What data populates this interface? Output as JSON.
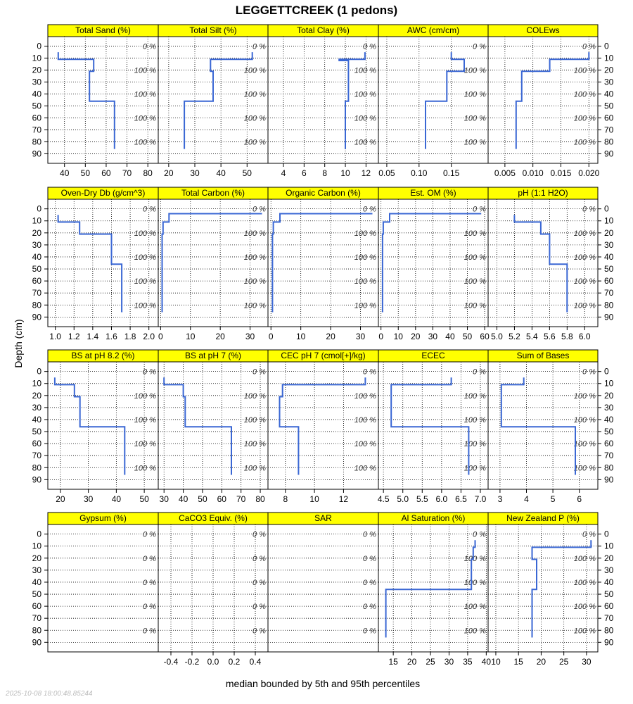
{
  "title": "LEGGETTCREEK (1 pedons)",
  "xlabel": "median bounded by 5th and 95th percentiles",
  "ylabel": "Depth (cm)",
  "timestamp": "2025-10-08 18:00:48.85244",
  "colors": {
    "strip": "#ffff00",
    "line": "#3a67d4",
    "grid": "#000000"
  },
  "chart_data": {
    "type": "line",
    "depth_axis": {
      "ticks": [
        0,
        10,
        20,
        30,
        40,
        50,
        60,
        70,
        80,
        90
      ],
      "range": [
        -8,
        98
      ]
    },
    "percent_labels": [
      {
        "depth": 0,
        "text": "0 %"
      },
      {
        "depth": 20,
        "text": "100 %"
      },
      {
        "depth": 40,
        "text": "100 %"
      },
      {
        "depth": 60,
        "text": "100 %"
      },
      {
        "depth": 80,
        "text": "100 %"
      }
    ],
    "percent_labels_zero": [
      {
        "depth": 0,
        "text": "0 %"
      },
      {
        "depth": 20,
        "text": "0 %"
      },
      {
        "depth": 40,
        "text": "0 %"
      },
      {
        "depth": 60,
        "text": "0 %"
      },
      {
        "depth": 80,
        "text": "0 %"
      }
    ],
    "panels": [
      {
        "title": "Total Sand (%)",
        "xlim": [
          32,
          85
        ],
        "xticks": [
          40,
          50,
          60,
          70,
          80
        ],
        "xlabels": [
          "40",
          "50",
          "60",
          "70",
          "80"
        ],
        "axis": "bottom",
        "pct": "full",
        "profile": [
          [
            37,
            5
          ],
          [
            37,
            11
          ],
          [
            54,
            11
          ],
          [
            54,
            21
          ],
          [
            52,
            21
          ],
          [
            52,
            46
          ],
          [
            64,
            46
          ],
          [
            64,
            86
          ]
        ]
      },
      {
        "title": "Total Silt (%)",
        "xlim": [
          16,
          58
        ],
        "xticks": [
          20,
          30,
          40,
          50
        ],
        "xlabels": [
          "20",
          "30",
          "40",
          "50"
        ],
        "axis": "bottom",
        "pct": "full",
        "profile": [
          [
            52,
            5
          ],
          [
            52,
            11
          ],
          [
            36,
            11
          ],
          [
            36,
            21
          ],
          [
            37,
            21
          ],
          [
            37,
            46
          ],
          [
            26,
            46
          ],
          [
            26,
            86
          ]
        ]
      },
      {
        "title": "Total Clay (%)",
        "xlim": [
          2.5,
          13.2
        ],
        "xticks": [
          4,
          6,
          8,
          10,
          12
        ],
        "xlabels": [
          "4",
          "6",
          "8",
          "10",
          "12"
        ],
        "axis": "bottom",
        "pct": "full",
        "profile": [
          [
            11.9,
            5
          ],
          [
            11.9,
            11
          ],
          [
            9.4,
            11
          ],
          [
            9.4,
            12
          ],
          [
            10.3,
            12
          ],
          [
            10.3,
            46
          ],
          [
            10,
            46
          ],
          [
            10,
            86
          ]
        ]
      },
      {
        "title": "AWC (cm/cm)",
        "xlim": [
          0.037,
          0.207
        ],
        "xticks": [
          0.05,
          0.1,
          0.15
        ],
        "xlabels": [
          "0.05",
          "0.10",
          "0.15"
        ],
        "axis": "bottom",
        "pct": "full",
        "profile": [
          [
            0.15,
            5
          ],
          [
            0.15,
            11
          ],
          [
            0.17,
            11
          ],
          [
            0.17,
            21
          ],
          [
            0.143,
            21
          ],
          [
            0.143,
            46
          ],
          [
            0.11,
            46
          ],
          [
            0.11,
            86
          ]
        ]
      },
      {
        "title": "COLEws",
        "xlim": [
          0.002,
          0.0216
        ],
        "xticks": [
          0.005,
          0.01,
          0.015,
          0.02
        ],
        "xlabels": [
          "0.005",
          "0.010",
          "0.015",
          "0.020"
        ],
        "axis": "bottom",
        "pct": "full",
        "profile": [
          [
            0.02,
            5
          ],
          [
            0.02,
            11
          ],
          [
            0.013,
            11
          ],
          [
            0.013,
            21
          ],
          [
            0.008,
            21
          ],
          [
            0.008,
            46
          ],
          [
            0.007,
            46
          ],
          [
            0.007,
            86
          ]
        ]
      },
      {
        "title": "Oven-Dry Db (g/cm^3)",
        "xlim": [
          0.92,
          2.1
        ],
        "xticks": [
          1.0,
          1.2,
          1.4,
          1.6,
          1.8,
          2.0
        ],
        "xlabels": [
          "1.0",
          "1.2",
          "1.4",
          "1.6",
          "1.8",
          "2.0"
        ],
        "axis": "bottom",
        "pct": "full",
        "profile": [
          [
            1.03,
            5
          ],
          [
            1.03,
            11
          ],
          [
            1.26,
            11
          ],
          [
            1.26,
            21
          ],
          [
            1.6,
            21
          ],
          [
            1.6,
            46
          ],
          [
            1.71,
            46
          ],
          [
            1.71,
            86
          ]
        ]
      },
      {
        "title": "Total Carbon (%)",
        "xlim": [
          -0.8,
          36
        ],
        "xticks": [
          0,
          10,
          20,
          30
        ],
        "xlabels": [
          "0",
          "10",
          "20",
          "30"
        ],
        "axis": "bottom",
        "pct": "full",
        "profile": [
          [
            34,
            4
          ],
          [
            2.8,
            4
          ],
          [
            2.8,
            11
          ],
          [
            0.8,
            11
          ],
          [
            0.8,
            21
          ],
          [
            0.5,
            21
          ],
          [
            0.5,
            86
          ]
        ]
      },
      {
        "title": "Organic Carbon (%)",
        "xlim": [
          -1,
          36
        ],
        "xticks": [
          0,
          10,
          20,
          30
        ],
        "xlabels": [
          "0",
          "10",
          "20",
          "30"
        ],
        "axis": "bottom",
        "pct": "full",
        "profile": [
          [
            34,
            4
          ],
          [
            3,
            4
          ],
          [
            3,
            11
          ],
          [
            0.8,
            11
          ],
          [
            0.8,
            21
          ],
          [
            0.5,
            21
          ],
          [
            0.5,
            86
          ]
        ]
      },
      {
        "title": "Est. OM (%)",
        "xlim": [
          -1.5,
          62
        ],
        "xticks": [
          0,
          10,
          20,
          30,
          40,
          50,
          60
        ],
        "xlabels": [
          "0",
          "10",
          "20",
          "30",
          "40",
          "50",
          "60"
        ],
        "axis": "bottom",
        "pct": "full",
        "profile": [
          [
            58,
            4
          ],
          [
            5,
            4
          ],
          [
            5,
            11
          ],
          [
            1.3,
            11
          ],
          [
            1.3,
            21
          ],
          [
            0.9,
            21
          ],
          [
            0.9,
            86
          ]
        ]
      },
      {
        "title": "pH (1:1 H2O)",
        "xlim": [
          4.9,
          6.15
        ],
        "xticks": [
          5.0,
          5.2,
          5.4,
          5.6,
          5.8,
          6.0
        ],
        "xlabels": [
          "5.0",
          "5.2",
          "5.4",
          "5.6",
          "5.8",
          "6.0"
        ],
        "axis": "bottom",
        "pct": "full",
        "profile": [
          [
            5.2,
            5
          ],
          [
            5.2,
            11
          ],
          [
            5.5,
            11
          ],
          [
            5.5,
            21
          ],
          [
            5.6,
            21
          ],
          [
            5.6,
            46
          ],
          [
            5.8,
            46
          ],
          [
            5.8,
            86
          ]
        ]
      },
      {
        "title": "BS at pH 8.2 (%)",
        "xlim": [
          15.5,
          55
        ],
        "xticks": [
          20,
          30,
          40,
          50
        ],
        "xlabels": [
          "20",
          "30",
          "40",
          "50"
        ],
        "axis": "bottom",
        "pct": "full",
        "profile": [
          [
            18,
            5
          ],
          [
            18,
            11
          ],
          [
            25,
            11
          ],
          [
            25,
            21
          ],
          [
            27,
            21
          ],
          [
            27,
            46
          ],
          [
            43,
            46
          ],
          [
            43,
            86
          ]
        ]
      },
      {
        "title": "BS at pH 7 (%)",
        "xlim": [
          27,
          84
        ],
        "xticks": [
          30,
          40,
          50,
          60,
          70,
          80
        ],
        "xlabels": [
          "30",
          "40",
          "50",
          "60",
          "70",
          "80"
        ],
        "axis": "bottom",
        "pct": "full",
        "profile": [
          [
            30,
            5
          ],
          [
            30,
            11
          ],
          [
            40,
            11
          ],
          [
            40,
            21
          ],
          [
            41,
            21
          ],
          [
            41,
            46
          ],
          [
            65,
            46
          ],
          [
            65,
            86
          ]
        ]
      },
      {
        "title": "CEC pH 7 (cmol[+]/kg)",
        "xlim": [
          6.8,
          14.4
        ],
        "xticks": [
          8,
          10,
          12
        ],
        "xlabels": [
          "8",
          "10",
          "12"
        ],
        "axis": "bottom",
        "pct": "full",
        "profile": [
          [
            13.5,
            5
          ],
          [
            13.5,
            11
          ],
          [
            7.8,
            11
          ],
          [
            7.8,
            21
          ],
          [
            7.6,
            21
          ],
          [
            7.6,
            46
          ],
          [
            8.9,
            46
          ],
          [
            8.9,
            86
          ]
        ]
      },
      {
        "title": "ECEC",
        "xlim": [
          4.37,
          7.2
        ],
        "xticks": [
          4.5,
          5.0,
          5.5,
          6.0,
          6.5,
          7.0
        ],
        "xlabels": [
          "4.5",
          "5.0",
          "5.5",
          "6.0",
          "6.5",
          "7.0"
        ],
        "axis": "bottom",
        "pct": "full",
        "profile": [
          [
            6.25,
            5
          ],
          [
            6.25,
            11
          ],
          [
            4.7,
            11
          ],
          [
            4.7,
            46
          ],
          [
            6.7,
            46
          ],
          [
            6.7,
            86
          ]
        ]
      },
      {
        "title": "Sum of Bases",
        "xlim": [
          2.55,
          6.7
        ],
        "xticks": [
          3,
          4,
          5,
          6
        ],
        "xlabels": [
          "3",
          "4",
          "5",
          "6"
        ],
        "axis": "bottom",
        "pct": "full",
        "profile": [
          [
            3.9,
            5
          ],
          [
            3.9,
            11
          ],
          [
            3.05,
            11
          ],
          [
            3.05,
            46
          ],
          [
            5.85,
            46
          ],
          [
            5.85,
            86
          ]
        ]
      },
      {
        "title": "Gypsum (%)",
        "xlim": [
          0,
          1
        ],
        "xticks": [],
        "xlabels": [],
        "axis": "none",
        "pct": "zero",
        "profile": []
      },
      {
        "title": "CaCO3 Equiv. (%)",
        "xlim": [
          -0.52,
          0.52
        ],
        "xticks": [
          -0.4,
          -0.2,
          0.0,
          0.2,
          0.4
        ],
        "xlabels": [
          "-0.4",
          "-0.2",
          "0.0",
          "0.2",
          "0.4"
        ],
        "axis": "bottom",
        "pct": "zero",
        "profile": []
      },
      {
        "title": "SAR",
        "xlim": [
          0,
          1
        ],
        "xticks": [],
        "xlabels": [],
        "axis": "none",
        "pct": "zero",
        "profile": []
      },
      {
        "title": "Al Saturation (%)",
        "xlim": [
          11,
          40.5
        ],
        "xticks": [
          15,
          20,
          25,
          30,
          35,
          40
        ],
        "xlabels": [
          "15",
          "20",
          "25",
          "30",
          "35",
          "40"
        ],
        "axis": "bottom",
        "pct": "full",
        "profile": [
          [
            37,
            5
          ],
          [
            37,
            11
          ],
          [
            36.5,
            11
          ],
          [
            36.5,
            21
          ],
          [
            36,
            21
          ],
          [
            36,
            46
          ],
          [
            13,
            46
          ],
          [
            13,
            86
          ]
        ]
      },
      {
        "title": "New Zealand P (%)",
        "xlim": [
          8.3,
          32.5
        ],
        "xticks": [
          10,
          15,
          20,
          25,
          30
        ],
        "xlabels": [
          "10",
          "15",
          "20",
          "25",
          "30"
        ],
        "axis": "bottom",
        "pct": "full",
        "profile": [
          [
            31,
            5
          ],
          [
            31,
            11
          ],
          [
            18,
            11
          ],
          [
            18,
            21
          ],
          [
            19,
            21
          ],
          [
            19,
            46
          ],
          [
            18,
            46
          ],
          [
            18,
            86
          ]
        ]
      }
    ]
  }
}
